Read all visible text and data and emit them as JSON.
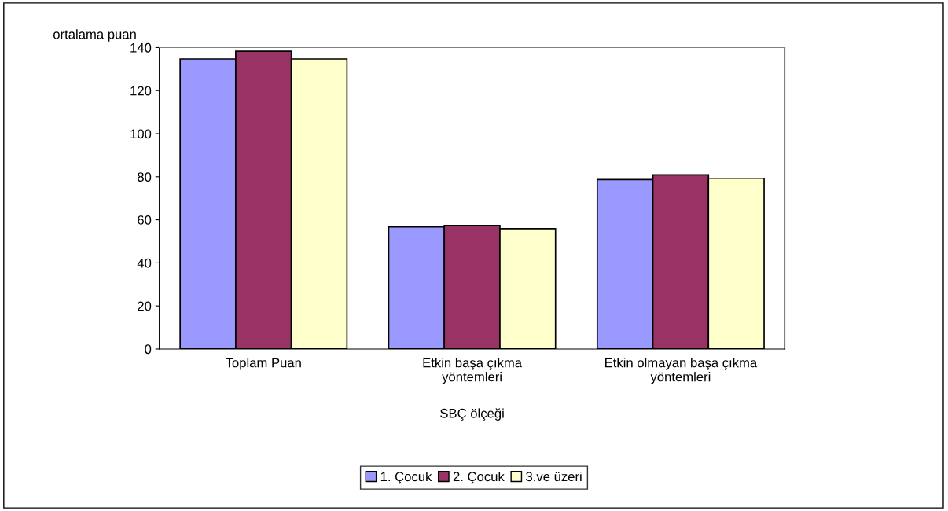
{
  "chart_data": {
    "type": "bar",
    "ylabel": "ortalama puan",
    "xlabel": "SBÇ ölçeği",
    "categories": [
      "Toplam Puan",
      "Etkin başa çıkma\nyöntemleri",
      "Etkin olmayan başa çıkma\nyöntemleri"
    ],
    "series": [
      {
        "name": "1. Çocuk",
        "color": "#9999ff",
        "values": [
          134.7,
          56.7,
          78.7
        ]
      },
      {
        "name": "2. Çocuk",
        "color": "#993366",
        "values": [
          138.3,
          57.4,
          80.9
        ]
      },
      {
        "name": "3.ve üzeri",
        "color": "#ffffcc",
        "values": [
          134.7,
          55.9,
          79.3
        ]
      }
    ],
    "ylim": [
      0,
      140
    ],
    "yticks": [
      0,
      20,
      40,
      60,
      80,
      100,
      120,
      140
    ],
    "grid": false,
    "legend": "bottom"
  }
}
